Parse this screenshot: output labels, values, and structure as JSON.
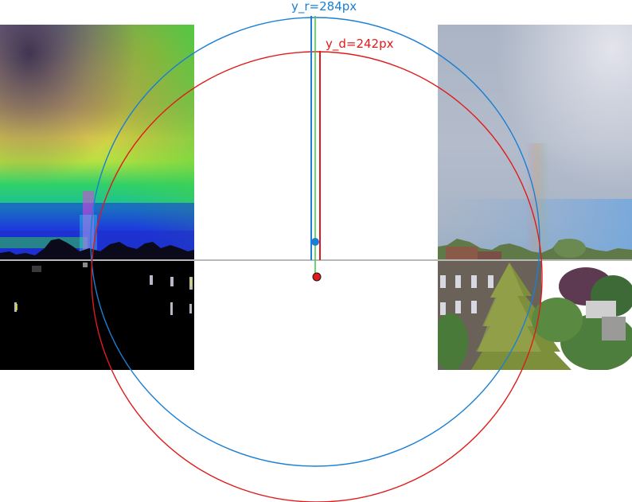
{
  "labels": {
    "y_r": "y_r=284px",
    "y_d": "y_d=242px"
  },
  "colors": {
    "rainbow_circle": "#1a7fd4",
    "secondary_circle": "#e01a1a",
    "green_marker": "#3ccc3c",
    "horizon_line": "#b8b8b8",
    "background": "#ffffff"
  },
  "panels": {
    "left": {
      "description_icon": "false-color-sky-photo"
    },
    "right": {
      "description_icon": "rainbow-sky-photo"
    }
  }
}
